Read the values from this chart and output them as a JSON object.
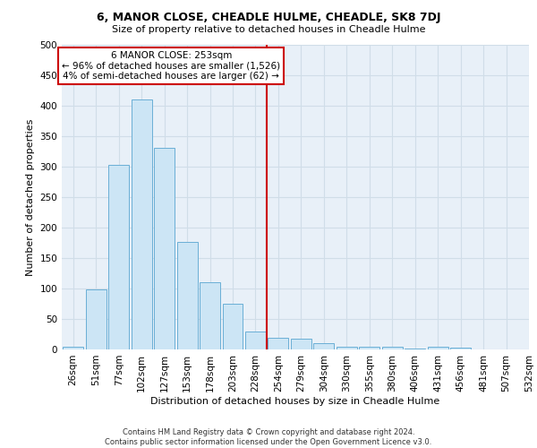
{
  "title": "6, MANOR CLOSE, CHEADLE HULME, CHEADLE, SK8 7DJ",
  "subtitle": "Size of property relative to detached houses in Cheadle Hulme",
  "xlabel": "Distribution of detached houses by size in Cheadle Hulme",
  "ylabel": "Number of detached properties",
  "bar_values": [
    4,
    99,
    303,
    411,
    331,
    176,
    110,
    75,
    30,
    19,
    18,
    10,
    4,
    4,
    5,
    1,
    4,
    3
  ],
  "all_xtick_labels": [
    "26sqm",
    "51sqm",
    "77sqm",
    "102sqm",
    "127sqm",
    "153sqm",
    "178sqm",
    "203sqm",
    "228sqm",
    "254sqm",
    "279sqm",
    "304sqm",
    "330sqm",
    "355sqm",
    "380sqm",
    "406sqm",
    "431sqm",
    "456sqm",
    "481sqm",
    "507sqm",
    "532sqm"
  ],
  "bar_color": "#cce5f5",
  "bar_edge_color": "#6aafd6",
  "grid_color": "#d0dde8",
  "background_color": "#e8f0f8",
  "vline_x_idx": 8.5,
  "vline_color": "#cc0000",
  "annotation_line1": "6 MANOR CLOSE: 253sqm",
  "annotation_line2": "← 96% of detached houses are smaller (1,526)",
  "annotation_line3": "4% of semi-detached houses are larger (62) →",
  "annotation_box_facecolor": "#ffffff",
  "annotation_box_edgecolor": "#cc0000",
  "footer_text": "Contains HM Land Registry data © Crown copyright and database right 2024.\nContains public sector information licensed under the Open Government Licence v3.0.",
  "ylim": [
    0,
    500
  ],
  "yticks": [
    0,
    50,
    100,
    150,
    200,
    250,
    300,
    350,
    400,
    450,
    500
  ],
  "title_fontsize": 9,
  "subtitle_fontsize": 8,
  "ylabel_fontsize": 8,
  "xlabel_fontsize": 8,
  "tick_fontsize": 7.5,
  "annot_fontsize": 7.5,
  "footer_fontsize": 6
}
